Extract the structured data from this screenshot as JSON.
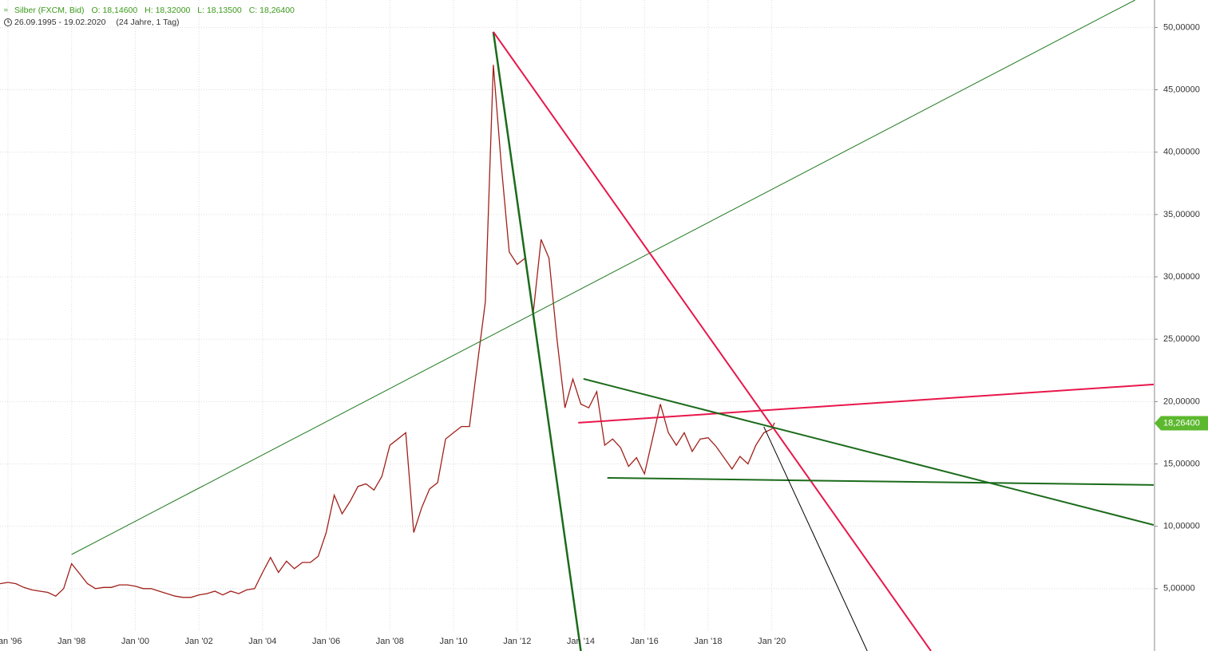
{
  "chart_data": {
    "type": "line",
    "instrument": "Silber (FXCM, Bid)",
    "quote": [
      "O: 18,14600",
      "H: 18,32000",
      "L: 18,13500",
      "C: 18,26400"
    ],
    "period": "26.09.1995 - 19.02.2020",
    "span": "(24 Jahre, 1 Tag)",
    "xlim": [
      "1995-10",
      "2032-01"
    ],
    "xticks": [
      {
        "value": "1996-01",
        "label": "Jan '96"
      },
      {
        "value": "1998-01",
        "label": "Jan '98"
      },
      {
        "value": "2000-01",
        "label": "Jan '00"
      },
      {
        "value": "2002-01",
        "label": "Jan '02"
      },
      {
        "value": "2004-01",
        "label": "Jan '04"
      },
      {
        "value": "2006-01",
        "label": "Jan '06"
      },
      {
        "value": "2008-01",
        "label": "Jan '08"
      },
      {
        "value": "2010-01",
        "label": "Jan '10"
      },
      {
        "value": "2012-01",
        "label": "Jan '12"
      },
      {
        "value": "2014-01",
        "label": "Jan '14"
      },
      {
        "value": "2016-01",
        "label": "Jan '16"
      },
      {
        "value": "2018-01",
        "label": "Jan '18"
      },
      {
        "value": "2020-01",
        "label": "Jan '20"
      }
    ],
    "ylim": [
      0,
      52.2
    ],
    "yticks": [
      {
        "value": 5,
        "label": "5,00000"
      },
      {
        "value": 10,
        "label": "10,00000"
      },
      {
        "value": 15,
        "label": "15,00000"
      },
      {
        "value": 20,
        "label": "20,00000"
      },
      {
        "value": 25,
        "label": "25,00000"
      },
      {
        "value": 30,
        "label": "30,00000"
      },
      {
        "value": 35,
        "label": "35,00000"
      },
      {
        "value": 40,
        "label": "40,00000"
      },
      {
        "value": 45,
        "label": "45,00000"
      },
      {
        "value": 50,
        "label": "50,00000"
      }
    ],
    "grid": true,
    "x": [
      "1995-10",
      "1996-01",
      "1996-04",
      "1996-07",
      "1996-10",
      "1997-01",
      "1997-04",
      "1997-07",
      "1997-10",
      "1998-01",
      "1998-04",
      "1998-07",
      "1998-10",
      "1999-01",
      "1999-04",
      "1999-07",
      "1999-10",
      "2000-01",
      "2000-04",
      "2000-07",
      "2000-10",
      "2001-01",
      "2001-04",
      "2001-07",
      "2001-10",
      "2002-01",
      "2002-04",
      "2002-07",
      "2002-10",
      "2003-01",
      "2003-04",
      "2003-07",
      "2003-10",
      "2004-01",
      "2004-04",
      "2004-07",
      "2004-10",
      "2005-01",
      "2005-04",
      "2005-07",
      "2005-10",
      "2006-01",
      "2006-04",
      "2006-07",
      "2006-10",
      "2007-01",
      "2007-04",
      "2007-07",
      "2007-10",
      "2008-01",
      "2008-04",
      "2008-07",
      "2008-10",
      "2009-01",
      "2009-04",
      "2009-07",
      "2009-10",
      "2010-01",
      "2010-04",
      "2010-07",
      "2010-10",
      "2011-01",
      "2011-04",
      "2011-07",
      "2011-10",
      "2012-01",
      "2012-04",
      "2012-07",
      "2012-10",
      "2013-01",
      "2013-04",
      "2013-07",
      "2013-10",
      "2014-01",
      "2014-04",
      "2014-07",
      "2014-10",
      "2015-01",
      "2015-04",
      "2015-07",
      "2015-10",
      "2016-01",
      "2016-04",
      "2016-07",
      "2016-10",
      "2017-01",
      "2017-04",
      "2017-07",
      "2017-10",
      "2018-01",
      "2018-04",
      "2018-07",
      "2018-10",
      "2019-01",
      "2019-04",
      "2019-07",
      "2019-10",
      "2020-01",
      "2020-02"
    ],
    "series": [
      {
        "color": "#a0201a",
        "values": [
          5.4,
          5.5,
          5.4,
          5.1,
          4.9,
          4.8,
          4.7,
          4.4,
          5.0,
          7.0,
          6.2,
          5.4,
          5.0,
          5.1,
          5.1,
          5.3,
          5.3,
          5.2,
          5.0,
          5.0,
          4.8,
          4.6,
          4.4,
          4.3,
          4.3,
          4.5,
          4.6,
          4.8,
          4.5,
          4.8,
          4.6,
          4.9,
          5.0,
          6.3,
          7.5,
          6.3,
          7.2,
          6.6,
          7.1,
          7.1,
          7.6,
          9.5,
          12.5,
          11.0,
          12.0,
          13.2,
          13.4,
          12.9,
          14.0,
          16.5,
          17.0,
          17.5,
          9.5,
          11.5,
          13.0,
          13.5,
          17.0,
          17.5,
          18.0,
          18.0,
          23.0,
          28.0,
          47.0,
          39.0,
          32.0,
          31.0,
          31.5,
          27.0,
          33.0,
          31.5,
          25.0,
          19.5,
          21.8,
          19.8,
          19.5,
          20.8,
          16.5,
          17.0,
          16.3,
          14.8,
          15.5,
          14.2,
          17.0,
          19.8,
          17.5,
          16.5,
          17.5,
          16.0,
          17.0,
          17.1,
          16.4,
          15.5,
          14.6,
          15.6,
          15.0,
          16.5,
          17.5,
          17.8,
          18.3
        ]
      }
    ],
    "trendlines": [
      {
        "color": "#1f7a1f",
        "width": 1,
        "x": [
          "1998-01",
          "2031-06"
        ],
        "values": [
          7.74,
          52.2
        ]
      },
      {
        "color": "#1b6b1b",
        "width": 2.5,
        "x": [
          "2011-04",
          "2014-01"
        ],
        "values": [
          49.65,
          0
        ]
      },
      {
        "color": "#e8174b",
        "width": 2,
        "x": [
          "2011-04",
          "2025-01"
        ],
        "values": [
          49.65,
          0
        ]
      },
      {
        "color": "#e8174b",
        "width": 2,
        "x": [
          "2013-12",
          "2032-01"
        ],
        "values": [
          18.3,
          21.37
        ]
      },
      {
        "color": "#1b6b1b",
        "width": 2,
        "x": [
          "2014-02",
          "2032-01"
        ],
        "values": [
          21.82,
          10.11
        ]
      },
      {
        "color": "#1b6b1b",
        "width": 2,
        "x": [
          "2014-11",
          "2032-01"
        ],
        "values": [
          13.88,
          13.31
        ]
      },
      {
        "color": "#000000",
        "width": 1,
        "x": [
          "2019-10",
          "2023-01"
        ],
        "values": [
          17.98,
          0
        ]
      }
    ],
    "last": {
      "value": 18.264,
      "label": "18,26400",
      "color": "#5cb82e"
    }
  }
}
